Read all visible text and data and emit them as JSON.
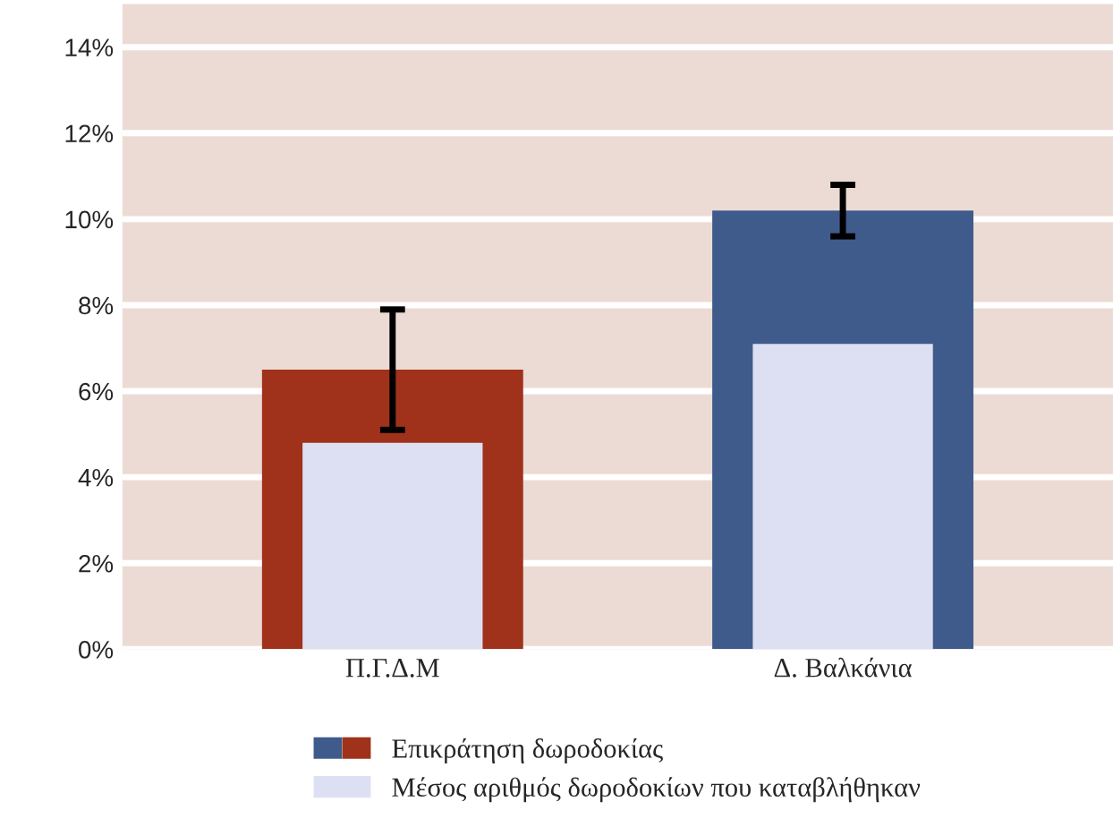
{
  "chart_data": {
    "type": "bar",
    "categories": [
      "Π.Γ.Δ.Μ",
      "Δ. Βαλκάνια"
    ],
    "series": [
      {
        "name": "Επικράτηση δωροδοκίας",
        "colors": [
          "#a0311a",
          "#3f5b8c"
        ],
        "values": [
          6.5,
          10.2
        ],
        "errors": [
          [
            5.1,
            7.9
          ],
          [
            9.6,
            10.8
          ]
        ]
      },
      {
        "name": "Μέσος αριθμός δωροδοκίων που καταβλήθηκαν",
        "color": "#dde0f2",
        "values": [
          4.8,
          7.1
        ]
      }
    ],
    "ylim": [
      0,
      15
    ],
    "yticks": [
      {
        "value": 0,
        "label": "0%"
      },
      {
        "value": 2,
        "label": "2%"
      },
      {
        "value": 4,
        "label": "4%"
      },
      {
        "value": 6,
        "label": "6%"
      },
      {
        "value": 8,
        "label": "8%"
      },
      {
        "value": 10,
        "label": "10%"
      },
      {
        "value": 12,
        "label": "12%"
      },
      {
        "value": 14,
        "label": "14%"
      }
    ],
    "grid": "y",
    "legend": "bottom"
  }
}
